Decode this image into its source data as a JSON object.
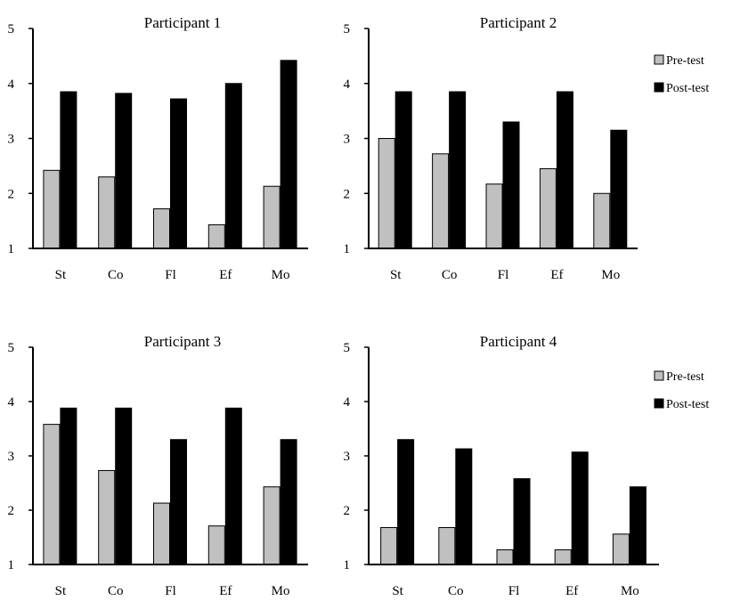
{
  "colors": {
    "pre": "#c0c0c0",
    "post": "#000000",
    "axis": "#000000"
  },
  "chart_data": [
    {
      "type": "bar",
      "title": "Participant 1",
      "categories": [
        "St",
        "Co",
        "Fl",
        "Ef",
        "Mo"
      ],
      "ylim": [
        1,
        5
      ],
      "yticks": [
        1,
        2,
        3,
        4,
        5
      ],
      "grid": false,
      "legend": null,
      "series": [
        {
          "name": "Pre-test",
          "values": [
            2.42,
            2.3,
            1.72,
            1.43,
            2.13
          ]
        },
        {
          "name": "Post-test",
          "values": [
            3.85,
            3.82,
            3.72,
            4.0,
            4.42
          ]
        }
      ]
    },
    {
      "type": "bar",
      "title": "Participant 2",
      "categories": [
        "St",
        "Co",
        "Fl",
        "Ef",
        "Mo"
      ],
      "ylim": [
        1,
        5
      ],
      "yticks": [
        1,
        2,
        3,
        4,
        5
      ],
      "grid": false,
      "legend": "right",
      "series": [
        {
          "name": "Pre-test",
          "values": [
            3.0,
            2.72,
            2.17,
            2.45,
            2.0
          ]
        },
        {
          "name": "Post-test",
          "values": [
            3.85,
            3.85,
            3.3,
            3.85,
            3.15
          ]
        }
      ]
    },
    {
      "type": "bar",
      "title": "Participant 3",
      "categories": [
        "St",
        "Co",
        "Fl",
        "Ef",
        "Mo"
      ],
      "ylim": [
        1,
        5
      ],
      "yticks": [
        1,
        2,
        3,
        4,
        5
      ],
      "grid": false,
      "legend": null,
      "series": [
        {
          "name": "Pre-test",
          "values": [
            3.58,
            2.73,
            2.13,
            1.71,
            2.43
          ]
        },
        {
          "name": "Post-test",
          "values": [
            3.88,
            3.88,
            3.3,
            3.88,
            3.3
          ]
        }
      ]
    },
    {
      "type": "bar",
      "title": "Participant 4",
      "categories": [
        "St",
        "Co",
        "Fl",
        "Ef",
        "Mo"
      ],
      "ylim": [
        1,
        5
      ],
      "yticks": [
        1,
        2,
        3,
        4,
        5
      ],
      "grid": false,
      "legend": "right",
      "series": [
        {
          "name": "Pre-test",
          "values": [
            1.68,
            1.68,
            1.27,
            1.27,
            1.56
          ]
        },
        {
          "name": "Post-test",
          "values": [
            3.3,
            3.13,
            2.58,
            3.07,
            2.43
          ]
        }
      ]
    }
  ]
}
